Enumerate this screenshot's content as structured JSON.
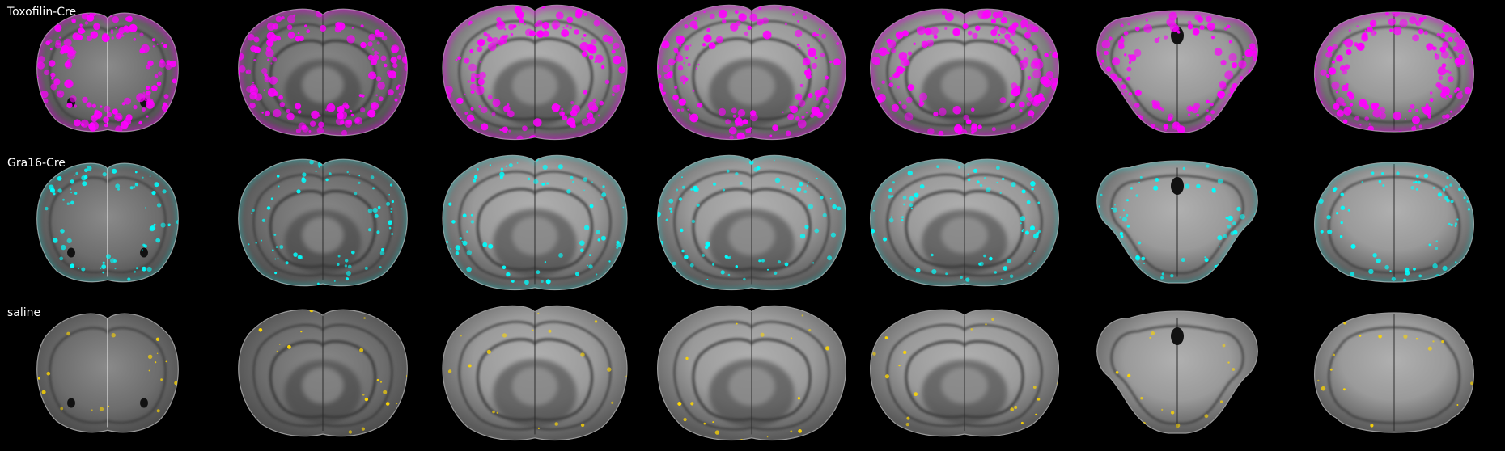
{
  "rows": [
    {
      "label": "Toxofilin-Cre",
      "color": "#ff00ff",
      "signal_density": "high"
    },
    {
      "label": "Gra16-Cre",
      "color": "#00ffff",
      "signal_density": "medium"
    },
    {
      "label": "saline",
      "color": "#ffd700",
      "signal_density": "sparse"
    }
  ],
  "section_count": 7,
  "background_color": "#000000",
  "tissue_color": "grayscale",
  "image_description": "Coronal mouse brain sections, anterior to posterior, with colored signal overlays"
}
